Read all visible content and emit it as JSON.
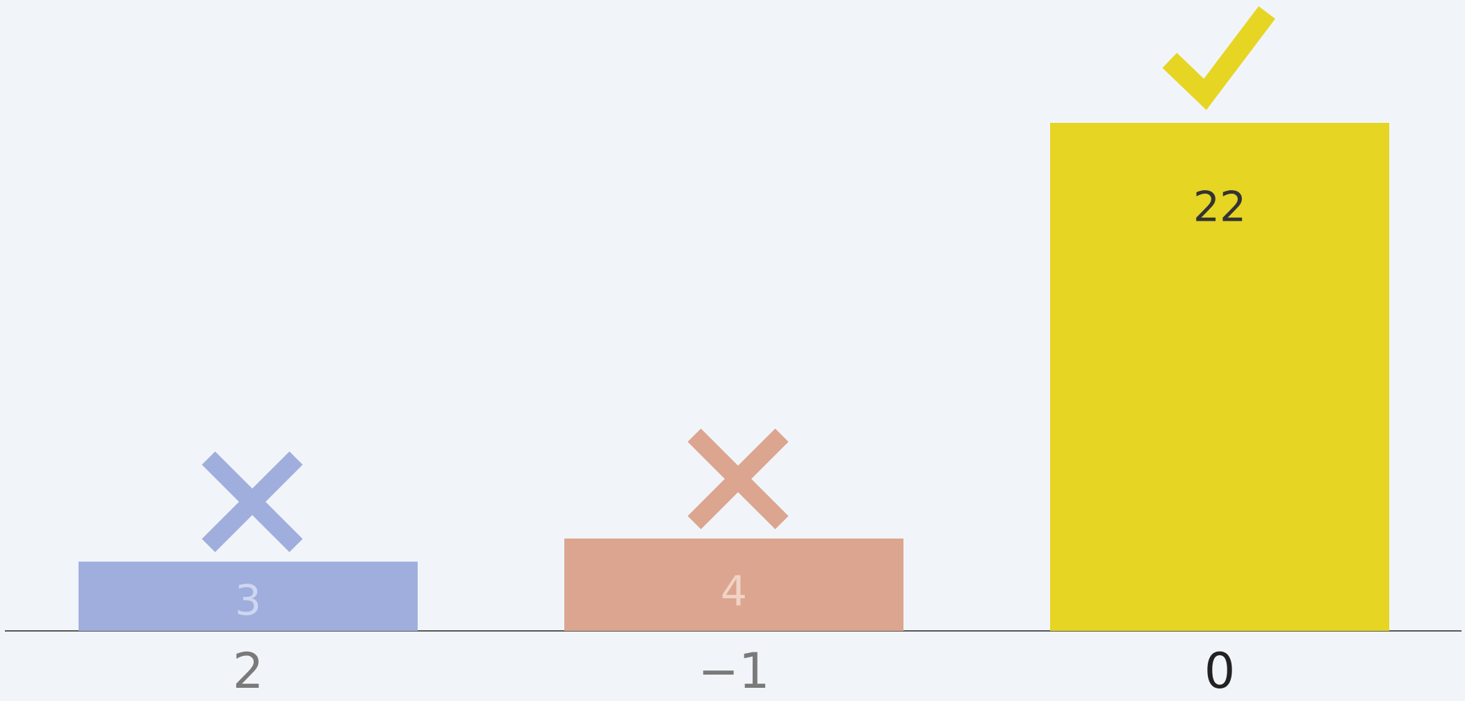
{
  "chart_data": {
    "type": "bar",
    "categories": [
      "2",
      "−1",
      "0"
    ],
    "values": [
      3,
      4,
      22
    ],
    "colors": [
      "#a0aedd",
      "#dba58f",
      "#e6d523"
    ]
  }
}
